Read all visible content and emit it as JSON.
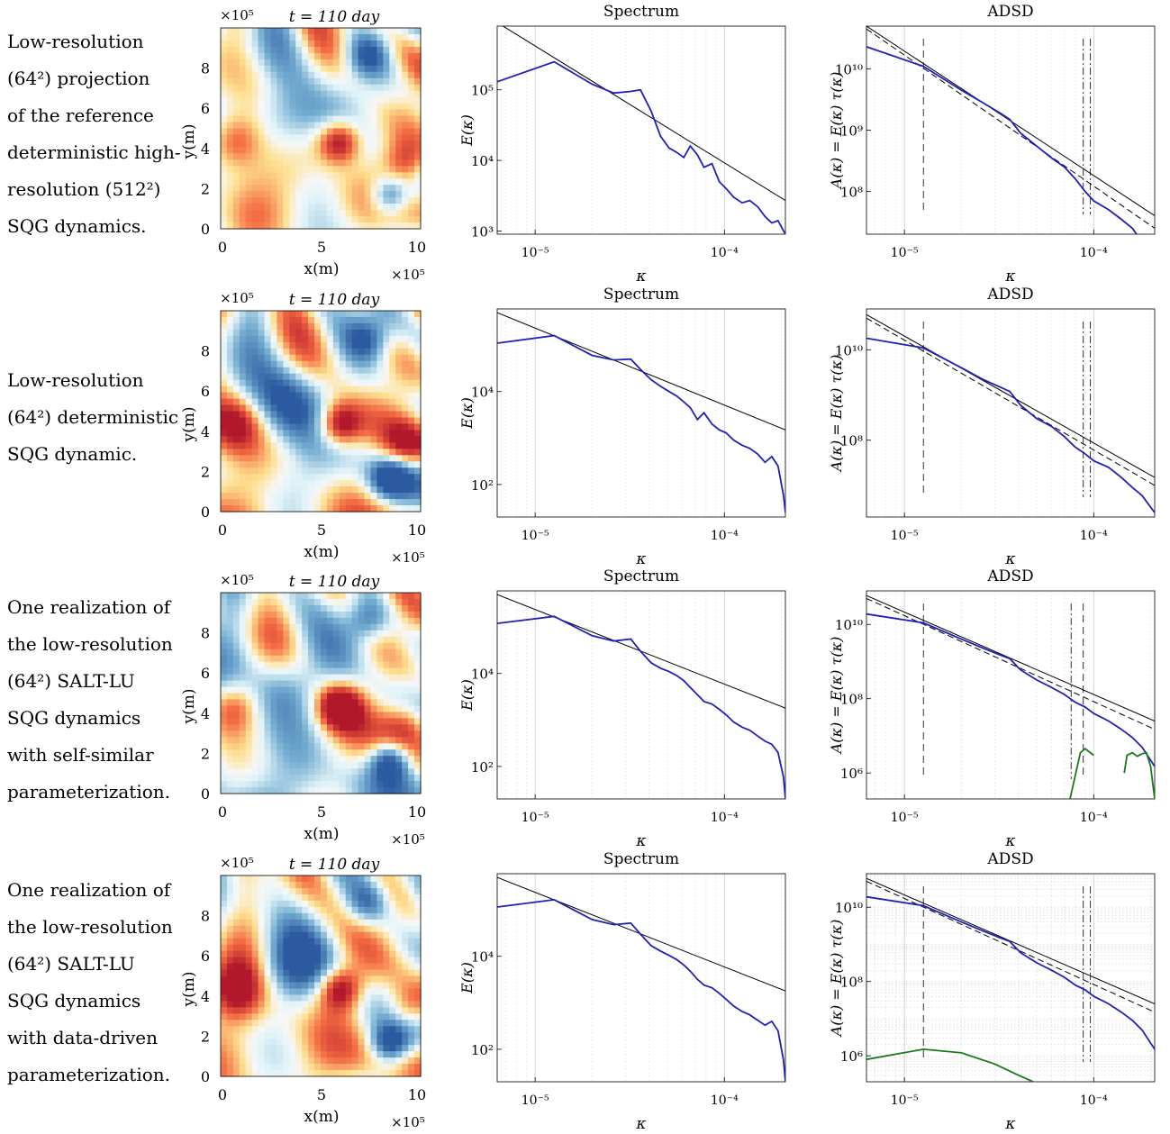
{
  "rows": [
    {
      "caption": [
        "Low-resolution",
        "(64²) projection",
        "of the reference",
        "deterministic high-",
        "resolution (512²)",
        "SQG dynamics."
      ],
      "field": {
        "title": "t = 110 day",
        "xlabel": "x(m)",
        "ylabel": "y(m)",
        "x_ticks": [
          "0",
          "5",
          "10"
        ],
        "y_ticks": [
          "0",
          "2",
          "4",
          "6",
          "8"
        ],
        "x_exp": "×10⁵",
        "y_exp": "×10⁵"
      }
    },
    {
      "caption": [
        "Low-resolution",
        "(64²) deterministic",
        "SQG dynamic."
      ],
      "field": {
        "title": "t = 110 day",
        "xlabel": "x(m)",
        "ylabel": "y(m)",
        "x_ticks": [
          "0",
          "5",
          "10"
        ],
        "y_ticks": [
          "0",
          "2",
          "4",
          "6",
          "8"
        ],
        "x_exp": "×10⁵",
        "y_exp": "×10⁵"
      }
    },
    {
      "caption": [
        "One realization of",
        "the low-resolution",
        "(64²) SALT-LU",
        "SQG dynamics",
        "with self-similar",
        "parameterization."
      ],
      "field": {
        "title": "t = 110 day",
        "xlabel": "x(m)",
        "ylabel": "y(m)",
        "x_ticks": [
          "0",
          "5",
          "10"
        ],
        "y_ticks": [
          "0",
          "2",
          "4",
          "6",
          "8"
        ],
        "x_exp": "×10⁵",
        "y_exp": "×10⁵"
      }
    },
    {
      "caption": [
        "One realization of",
        "the low-resolution",
        "(64²) SALT-LU",
        "SQG dynamics",
        "with data-driven",
        "parameterization."
      ],
      "field": {
        "title": "t = 110 day",
        "xlabel": "x(m)",
        "ylabel": "y(m)",
        "x_ticks": [
          "0",
          "5",
          "10"
        ],
        "y_ticks": [
          "0",
          "2",
          "4",
          "6",
          "8"
        ],
        "x_exp": "×10⁵",
        "y_exp": "×10⁵"
      }
    }
  ],
  "colors": {
    "spectrum": "#2020b8",
    "fit": "#000000",
    "noise": "#1a7a1a",
    "red": "#b2182b",
    "blue": "#2c5aa0",
    "pale": "#f7f7f7"
  },
  "chart_data": [
    {
      "type": "line",
      "title": "Spectrum",
      "xlabel": "κ",
      "ylabel": "E(κ)",
      "xlim": [
        6.3e-06,
        0.00021
      ],
      "ylim": [
        900,
        800000
      ],
      "x_ticks": [
        "10⁻⁵",
        "10⁻⁴"
      ],
      "y_ticks": [
        {
          "v": 1000,
          "label": "10³"
        },
        {
          "v": 10000,
          "label": "10⁴"
        },
        {
          "v": 100000,
          "label": "10⁵"
        }
      ],
      "series": [
        {
          "name": "",
          "color": "#2020b8",
          "x": [
            6.3e-06,
            1.26e-05,
            2e-05,
            2.6e-05,
            3.2e-05,
            3.6e-05,
            4.1e-05,
            4.6e-05,
            5.1e-05,
            5.6e-05,
            6.1e-05,
            6.6e-05,
            7.2e-05,
            7.8e-05,
            8.6e-05,
            9.4e-05,
            0.000102,
            0.000112,
            0.000124,
            0.000136,
            0.00015,
            0.000164,
            0.000178,
            0.000192,
            0.00021
          ],
          "y": [
            130000,
            250000,
            120000,
            90000,
            95000,
            100000,
            50000,
            22000,
            15000,
            13000,
            11000,
            16000,
            12000,
            8000,
            9000,
            5000,
            4000,
            3000,
            2500,
            2700,
            2200,
            1600,
            1300,
            1400,
            900
          ]
        }
      ],
      "fit": {
        "x": [
          6.3e-06,
          0.00021
        ],
        "y": [
          900000,
          2700
        ]
      }
    },
    {
      "type": "line",
      "title": "ADSD",
      "xlabel": "κ",
      "ylabel": "A(κ) = E(κ) τ(κ)",
      "xlim": [
        6.3e-06,
        0.00021
      ],
      "ylim": [
        20000000.0,
        50000000000.0
      ],
      "x_ticks": [
        "10⁻⁵",
        "10⁻⁴"
      ],
      "y_ticks": [
        {
          "v": 100000000.0,
          "label": "10⁸"
        },
        {
          "v": 1000000000.0,
          "label": "10⁹"
        },
        {
          "v": 10000000000.0,
          "label": "10¹⁰"
        }
      ],
      "series": [
        {
          "name": "",
          "color": "#2020b8",
          "x": [
            6.3e-06,
            1.26e-05,
            2e-05,
            2.6e-05,
            3.2e-05,
            3.6e-05,
            4.1e-05,
            5e-05,
            6e-05,
            7e-05,
            8e-05,
            9e-05,
            0.0001,
            0.00012,
            0.00014,
            0.00016,
            0.00018,
            0.00021
          ],
          "y": [
            23000000000.0,
            11000000000.0,
            4500000000.0,
            2800000000.0,
            1900000000.0,
            1500000000.0,
            900000000.0,
            550000000.0,
            350000000.0,
            250000000.0,
            160000000.0,
            100000000.0,
            70000000.0,
            50000000.0,
            35000000.0,
            25000000.0,
            15000000.0,
            8000000.0
          ]
        }
      ],
      "fit": {
        "x": [
          6.3e-06,
          0.00021
        ],
        "y": [
          50000000000.0,
          40000000.0
        ]
      },
      "fit_dashed": {
        "x": [
          6.3e-06,
          0.00021
        ],
        "y": [
          45000000000.0,
          25000000.0
        ]
      },
      "vlines": [
        {
          "x": 1.26e-05,
          "style": "dash"
        },
        {
          "x": 8.8e-05,
          "style": "dashdot"
        },
        {
          "x": 9.6e-05,
          "style": "dashdot"
        }
      ]
    },
    {
      "type": "line",
      "title": "Spectrum",
      "xlabel": "κ",
      "ylabel": "E(κ)",
      "xlim": [
        6.3e-06,
        0.00021
      ],
      "ylim": [
        20,
        600000
      ],
      "x_ticks": [
        "10⁻⁵",
        "10⁻⁴"
      ],
      "y_ticks": [
        {
          "v": 100,
          "label": "10²"
        },
        {
          "v": 10000,
          "label": "10⁴"
        }
      ],
      "series": [
        {
          "name": "",
          "color": "#2020b8",
          "x": [
            6.3e-06,
            1.26e-05,
            2e-05,
            2.6e-05,
            3.2e-05,
            3.6e-05,
            4.1e-05,
            4.6e-05,
            5.1e-05,
            5.6e-05,
            6.1e-05,
            6.6e-05,
            7.2e-05,
            7.8e-05,
            8.6e-05,
            9.4e-05,
            0.000102,
            0.000112,
            0.000124,
            0.000136,
            0.00015,
            0.000164,
            0.000178,
            0.000192,
            0.000205,
            0.00021
          ],
          "y": [
            110000,
            160000,
            60000,
            48000,
            50000,
            30000,
            18000,
            13000,
            10000,
            8000,
            6000,
            4500,
            2500,
            3500,
            2000,
            1500,
            1300,
            900,
            700,
            600,
            450,
            300,
            400,
            250,
            60,
            25
          ]
        }
      ],
      "fit": {
        "x": [
          6.3e-06,
          0.00021
        ],
        "y": [
          500000,
          1500
        ]
      }
    },
    {
      "type": "line",
      "title": "ADSD",
      "xlabel": "κ",
      "ylabel": "A(κ) = E(κ) τ(κ)",
      "xlim": [
        6.3e-06,
        0.00021
      ],
      "ylim": [
        2000000.0,
        80000000000.0
      ],
      "x_ticks": [
        "10⁻⁵",
        "10⁻⁴"
      ],
      "y_ticks": [
        {
          "v": 100000000.0,
          "label": "10⁸"
        },
        {
          "v": 10000000000.0,
          "label": "10¹⁰"
        }
      ],
      "series": [
        {
          "name": "",
          "color": "#2020b8",
          "x": [
            6.3e-06,
            1.26e-05,
            2e-05,
            2.6e-05,
            3.2e-05,
            3.6e-05,
            4.1e-05,
            5e-05,
            6e-05,
            7e-05,
            8e-05,
            9e-05,
            0.0001,
            0.00012,
            0.00014,
            0.00016,
            0.00018,
            0.00021
          ],
          "y": [
            18000000000.0,
            11000000000.0,
            4000000000.0,
            2200000000.0,
            1500000000.0,
            1200000000.0,
            600000000.0,
            300000000.0,
            200000000.0,
            120000000.0,
            70000000.0,
            50000000.0,
            35000000.0,
            25000000.0,
            15000000.0,
            9000000.0,
            6000000.0,
            2500000.0
          ]
        }
      ],
      "fit": {
        "x": [
          6.3e-06,
          0.00021
        ],
        "y": [
          60000000000.0,
          15000000.0
        ]
      },
      "fit_dashed": {
        "x": [
          6.3e-06,
          0.00021
        ],
        "y": [
          50000000000.0,
          10000000.0
        ]
      },
      "vlines": [
        {
          "x": 1.26e-05,
          "style": "dash"
        },
        {
          "x": 8.8e-05,
          "style": "dashdot"
        },
        {
          "x": 9.6e-05,
          "style": "dashdot"
        }
      ]
    },
    {
      "type": "line",
      "title": "Spectrum",
      "xlabel": "κ",
      "ylabel": "E(κ)",
      "xlim": [
        6.3e-06,
        0.00021
      ],
      "ylim": [
        20,
        600000
      ],
      "x_ticks": [
        "10⁻⁵",
        "10⁻⁴"
      ],
      "y_ticks": [
        {
          "v": 100,
          "label": "10²"
        },
        {
          "v": 10000,
          "label": "10⁴"
        }
      ],
      "series": [
        {
          "name": "",
          "color": "#2020b8",
          "x": [
            6.3e-06,
            1.26e-05,
            2e-05,
            2.6e-05,
            3.2e-05,
            3.6e-05,
            4.1e-05,
            4.6e-05,
            5.1e-05,
            5.6e-05,
            6.1e-05,
            6.6e-05,
            7.2e-05,
            7.8e-05,
            8.6e-05,
            9.4e-05,
            0.000102,
            0.000112,
            0.000124,
            0.000136,
            0.00015,
            0.000164,
            0.000178,
            0.000192,
            0.000205,
            0.00021
          ],
          "y": [
            120000,
            170000,
            65000,
            50000,
            55000,
            30000,
            17000,
            13000,
            11000,
            9000,
            7000,
            5000,
            3500,
            2500,
            2200,
            1700,
            1300,
            900,
            700,
            600,
            450,
            350,
            300,
            200,
            60,
            20
          ]
        }
      ],
      "fit": {
        "x": [
          6.3e-06,
          0.00021
        ],
        "y": [
          500000,
          1800
        ]
      }
    },
    {
      "type": "line",
      "title": "ADSD",
      "xlabel": "κ",
      "ylabel": "A(κ) = E(κ) τ(κ)",
      "xlim": [
        6.3e-06,
        0.00021
      ],
      "ylim": [
        200000.0,
        80000000000.0
      ],
      "x_ticks": [
        "10⁻⁵",
        "10⁻⁴"
      ],
      "y_ticks": [
        {
          "v": 1000000.0,
          "label": "10⁶"
        },
        {
          "v": 100000000.0,
          "label": "10⁸"
        },
        {
          "v": 10000000000.0,
          "label": "10¹⁰"
        }
      ],
      "series": [
        {
          "name": "",
          "color": "#2020b8",
          "x": [
            6.3e-06,
            1.26e-05,
            2e-05,
            2.6e-05,
            3.2e-05,
            3.6e-05,
            4.1e-05,
            5e-05,
            6e-05,
            7e-05,
            8e-05,
            9e-05,
            0.0001,
            0.00012,
            0.00014,
            0.00016,
            0.00018,
            0.00021
          ],
          "y": [
            19000000000.0,
            11000000000.0,
            4000000000.0,
            2300000000.0,
            1500000000.0,
            1200000000.0,
            600000000.0,
            320000000.0,
            200000000.0,
            130000000.0,
            80000000.0,
            60000000.0,
            40000000.0,
            25000000.0,
            15000000.0,
            9000000.0,
            5000000.0,
            1500000.0
          ]
        },
        {
          "name": "",
          "color": "#1a7a1a",
          "segments": [
            {
              "x": [
                7.5e-05,
                8.5e-05,
                9e-05,
                0.0001
              ],
              "y": [
                200000,
                3500000,
                4500000,
                3000000
              ]
            },
            {
              "x": [
                0.000145,
                0.00015,
                0.00016,
                0.00017,
                0.00018,
                0.00019,
                0.0002,
                0.00021
              ],
              "y": [
                1000000,
                3000000,
                3500000,
                2800000,
                3300000,
                3500000,
                1500000,
                200000
              ]
            }
          ]
        }
      ],
      "fit": {
        "x": [
          6.3e-06,
          0.00021
        ],
        "y": [
          60000000000.0,
          25000000.0
        ]
      },
      "fit_dashed": {
        "x": [
          6.3e-06,
          0.00021
        ],
        "y": [
          50000000000.0,
          15000000.0
        ]
      },
      "vlines": [
        {
          "x": 1.26e-05,
          "style": "dash"
        },
        {
          "x": 7.6e-05,
          "style": "dashdot"
        },
        {
          "x": 8.8e-05,
          "style": "dash"
        }
      ]
    },
    {
      "type": "line",
      "title": "Spectrum",
      "xlabel": "κ",
      "ylabel": "E(κ)",
      "xlim": [
        6.3e-06,
        0.00021
      ],
      "ylim": [
        20,
        600000
      ],
      "x_ticks": [
        "10⁻⁵",
        "10⁻⁴"
      ],
      "y_ticks": [
        {
          "v": 100,
          "label": "10²"
        },
        {
          "v": 10000,
          "label": "10⁴"
        }
      ],
      "series": [
        {
          "name": "",
          "color": "#2020b8",
          "x": [
            6.3e-06,
            1.26e-05,
            2e-05,
            2.6e-05,
            3.2e-05,
            3.6e-05,
            4.1e-05,
            4.6e-05,
            5.1e-05,
            5.6e-05,
            6.1e-05,
            6.6e-05,
            7.2e-05,
            7.8e-05,
            8.6e-05,
            9.4e-05,
            0.000102,
            0.000112,
            0.000124,
            0.000136,
            0.00015,
            0.000164,
            0.000178,
            0.000192,
            0.000205,
            0.00021
          ],
          "y": [
            115000,
            165000,
            62000,
            48000,
            52000,
            30000,
            17000,
            13000,
            10500,
            8500,
            6500,
            4800,
            3200,
            2400,
            2100,
            1600,
            1200,
            850,
            650,
            550,
            420,
            330,
            400,
            250,
            60,
            20
          ]
        }
      ],
      "fit": {
        "x": [
          6.3e-06,
          0.00021
        ],
        "y": [
          500000,
          1800
        ]
      }
    },
    {
      "type": "line",
      "title": "ADSD",
      "xlabel": "κ",
      "ylabel": "A(κ) = E(κ) τ(κ)",
      "xlim": [
        6.3e-06,
        0.00021
      ],
      "ylim": [
        200000.0,
        80000000000.0
      ],
      "x_ticks": [
        "10⁻⁵",
        "10⁻⁴"
      ],
      "y_ticks": [
        {
          "v": 1000000.0,
          "label": "10⁶"
        },
        {
          "v": 100000000.0,
          "label": "10⁸"
        },
        {
          "v": 10000000000.0,
          "label": "10¹⁰"
        }
      ],
      "series": [
        {
          "name": "",
          "color": "#2020b8",
          "x": [
            6.3e-06,
            1.26e-05,
            2e-05,
            2.6e-05,
            3.2e-05,
            3.6e-05,
            4.1e-05,
            5e-05,
            6e-05,
            7e-05,
            8e-05,
            9e-05,
            0.0001,
            0.00012,
            0.00014,
            0.00016,
            0.00018,
            0.00021
          ],
          "y": [
            19000000000.0,
            11000000000.0,
            4000000000.0,
            2300000000.0,
            1500000000.0,
            1200000000.0,
            600000000.0,
            320000000.0,
            200000000.0,
            130000000.0,
            80000000.0,
            60000000.0,
            40000000.0,
            25000000.0,
            15000000.0,
            9000000.0,
            5000000.0,
            1500000.0
          ]
        },
        {
          "name": "",
          "color": "#1a7a1a",
          "segments": [
            {
              "x": [
                6.3e-06,
                1.26e-05,
                2e-05,
                3e-05,
                4e-05,
                6e-05,
                7e-05,
                8e-05,
                0.0001,
                0.00012,
                0.00014,
                0.00016,
                0.00018,
                0.00021
              ],
              "y": [
                800000,
                1500000,
                1200000,
                600000,
                300000,
                120000,
                60000,
                35000,
                45000,
                35000,
                60000,
                45000,
                80000,
                150000
              ]
            }
          ]
        }
      ],
      "fit": {
        "x": [
          6.3e-06,
          0.00021
        ],
        "y": [
          60000000000.0,
          25000000.0
        ]
      },
      "fit_dashed": {
        "x": [
          6.3e-06,
          0.00021
        ],
        "y": [
          50000000000.0,
          15000000.0
        ]
      },
      "vlines": [
        {
          "x": 1.26e-05,
          "style": "dash"
        },
        {
          "x": 8.8e-05,
          "style": "dashdot"
        },
        {
          "x": 9.6e-05,
          "style": "dashdot"
        }
      ],
      "dense_grid": true
    }
  ]
}
